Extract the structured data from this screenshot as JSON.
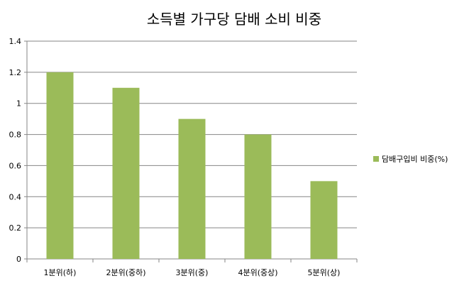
{
  "chart_data": {
    "type": "bar",
    "title": "소득별 가구당 담배 소비 비중",
    "categories": [
      "1분위(하)",
      "2분위(중하)",
      "3분위(중)",
      "4분위(중상)",
      "5분위(상)"
    ],
    "series": [
      {
        "name": "담배구입비 비중(%)",
        "values": [
          1.2,
          1.1,
          0.9,
          0.8,
          0.5
        ],
        "color": "#9bbb59"
      }
    ],
    "ylim": [
      0,
      1.4
    ],
    "yticks": [
      "0",
      "0.2",
      "0.4",
      "0.6",
      "0.8",
      "1",
      "1.2",
      "1.4"
    ],
    "xlabel": "",
    "ylabel": "",
    "grid": true,
    "legend_position": "right"
  }
}
